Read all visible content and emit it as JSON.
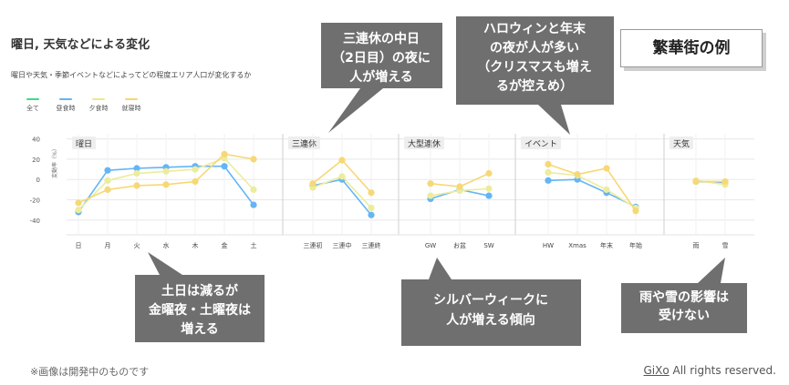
{
  "title": "曜日, 天気などによる変化",
  "subtitle": "曜日や天気・季節イベントなどによってどの程度エリア人口が変化するか",
  "legend": [
    {
      "label": "全て",
      "color": "#3ddc84"
    },
    {
      "label": "昼食時",
      "color": "#64b5f6"
    },
    {
      "label": "夕食時",
      "color": "#f0e68c"
    },
    {
      "label": "就寝時",
      "color": "#f5d76e"
    }
  ],
  "example_label": "繁華街の例",
  "chart_data": {
    "type": "line",
    "ylabel": "変動率（%）",
    "ylim": [
      -50,
      45
    ],
    "yticks": [
      40,
      20,
      0,
      -20,
      -40
    ],
    "grid": true,
    "legend_placement": "top-left",
    "panels": [
      {
        "name": "曜日",
        "categories": [
          "日",
          "月",
          "火",
          "水",
          "木",
          "金",
          "土"
        ],
        "series": [
          {
            "name": "昼食時",
            "values": [
              -32,
              9,
              11,
              12,
              13,
              13,
              -25
            ]
          },
          {
            "name": "夕食時",
            "values": [
              -30,
              -1,
              6,
              8,
              10,
              21,
              -10
            ]
          },
          {
            "name": "就寝時",
            "values": [
              -23,
              -10,
              -6,
              -5,
              -2,
              25,
              20
            ]
          }
        ]
      },
      {
        "name": "三連休",
        "categories": [
          "三連初",
          "三連中",
          "三連終"
        ],
        "series": [
          {
            "name": "昼食時",
            "values": [
              -6,
              0,
              -35
            ]
          },
          {
            "name": "夕食時",
            "values": [
              -8,
              3,
              -28
            ]
          },
          {
            "name": "就寝時",
            "values": [
              -4,
              19,
              -13
            ]
          }
        ]
      },
      {
        "name": "大型連休",
        "categories": [
          "GW",
          "お盆",
          "SW"
        ],
        "series": [
          {
            "name": "昼食時",
            "values": [
              -19,
              -10,
              -16
            ]
          },
          {
            "name": "夕食時",
            "values": [
              -16,
              -11,
              -9
            ]
          },
          {
            "name": "就寝時",
            "values": [
              -4,
              -7,
              6
            ]
          }
        ]
      },
      {
        "name": "イベント",
        "categories": [
          "HW",
          "Xmas",
          "年末",
          "年始"
        ],
        "series": [
          {
            "name": "昼食時",
            "values": [
              -1,
              0,
              -13,
              -27
            ]
          },
          {
            "name": "夕食時",
            "values": [
              7,
              4,
              -10,
              -28
            ]
          },
          {
            "name": "就寝時",
            "values": [
              15,
              5,
              11,
              -31
            ]
          }
        ]
      },
      {
        "name": "天気",
        "categories": [
          "雨",
          "雪"
        ],
        "series": [
          {
            "name": "昼食時",
            "values": [
              -2,
              -3
            ]
          },
          {
            "name": "夕食時",
            "values": [
              -1,
              -5
            ]
          },
          {
            "name": "就寝時",
            "values": [
              -2,
              -2
            ]
          }
        ]
      }
    ]
  },
  "callouts": [
    {
      "lines": [
        "三連休の中日",
        "（2日目）の夜に",
        "人が増える"
      ]
    },
    {
      "lines": [
        "ハロウィンと年末",
        "の夜が人が多い",
        "（クリスマスも増え",
        "るが控えめ）"
      ]
    },
    {
      "lines": [
        "土日は減るが",
        "金曜夜・土曜夜は",
        "増える"
      ]
    },
    {
      "lines": [
        "シルバーウィークに",
        "人が増える傾向"
      ]
    },
    {
      "lines": [
        "雨や雪の影響は",
        "受けない"
      ]
    }
  ],
  "footnote": "※画像は開発中のものです",
  "copyright": {
    "brand": "GiXo",
    "rest": " All rights reserved."
  }
}
